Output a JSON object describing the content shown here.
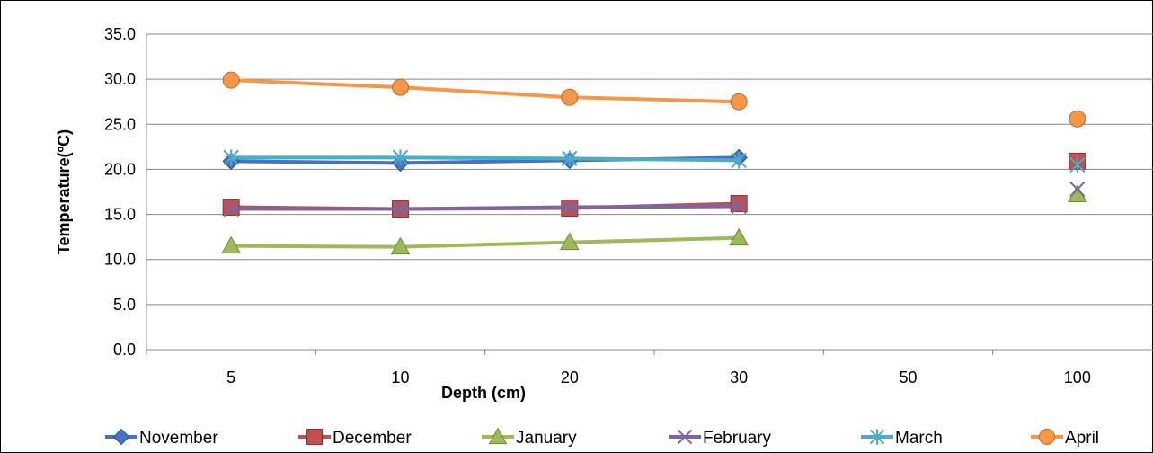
{
  "chart_data": {
    "type": "line",
    "categories": [
      "5",
      "10",
      "20",
      "30",
      "50",
      "100"
    ],
    "xlabel": "Depth (cm)",
    "ylabel": "Temperature(ºC)",
    "ylim": [
      0,
      35
    ],
    "yticks": [
      "0.0",
      "5.0",
      "10.0",
      "15.0",
      "20.0",
      "25.0",
      "30.0",
      "35.0"
    ],
    "grid": true,
    "legend_position": "bottom",
    "series": [
      {
        "name": "November",
        "color": "#4472C4",
        "marker": "diamond",
        "values": [
          20.9,
          20.7,
          21.0,
          21.3,
          null,
          20.8
        ]
      },
      {
        "name": "December",
        "color": "#C0504D",
        "marker": "square",
        "values": [
          15.8,
          15.6,
          15.7,
          16.2,
          null,
          20.9
        ]
      },
      {
        "name": "January",
        "color": "#9BBB59",
        "marker": "triangle",
        "values": [
          11.5,
          11.4,
          11.9,
          12.4,
          null,
          17.2
        ]
      },
      {
        "name": "February",
        "color": "#8064A2",
        "marker": "x",
        "values": [
          15.6,
          15.6,
          15.8,
          15.9,
          null,
          17.8
        ]
      },
      {
        "name": "March",
        "color": "#4BACC6",
        "marker": "star",
        "values": [
          21.3,
          21.3,
          21.2,
          21.0,
          null,
          20.5
        ]
      },
      {
        "name": "April",
        "color": "#F79646",
        "marker": "circle",
        "values": [
          29.9,
          29.1,
          28.0,
          27.5,
          null,
          25.6
        ]
      }
    ]
  }
}
